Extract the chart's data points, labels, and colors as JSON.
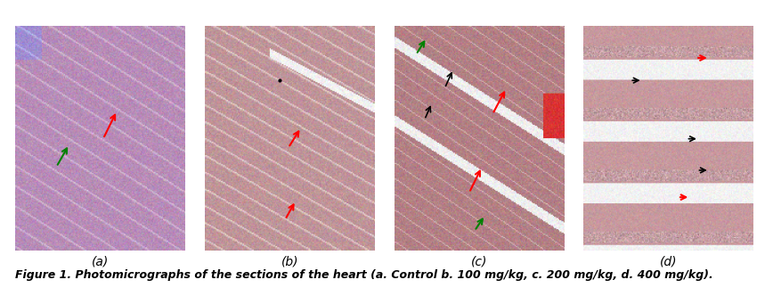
{
  "figure_width": 8.68,
  "figure_height": 3.23,
  "dpi": 100,
  "n_panels": 4,
  "panel_labels": [
    "(a)",
    "(b)",
    "(c)",
    "(d)"
  ],
  "caption": "Figure 1. Photomicrographs of the sections of the heart (a. Control b. 100 mg/kg, c. 200 mg/kg, d. 400 mg/kg).",
  "caption_fontsize": 9,
  "label_fontsize": 10,
  "background_color": "#ffffff",
  "panel_colors_a": {
    "bg": "#c8a0c8",
    "stripe": "#e8d0e8",
    "highlight1": "#b090b0"
  },
  "panel_colors_b": {
    "bg": "#c09090",
    "stripe": "#e8e0e0",
    "highlight1": "#b08080"
  },
  "panel_colors_c": {
    "bg": "#b88888",
    "stripe": "#ddd0d0",
    "highlight1": "#a07070"
  },
  "panel_colors_d": {
    "bg": "#c09090",
    "stripe": "#f0f0f0",
    "highlight1": "#a07070"
  },
  "image_paths": [
    "a",
    "b",
    "c",
    "d"
  ]
}
